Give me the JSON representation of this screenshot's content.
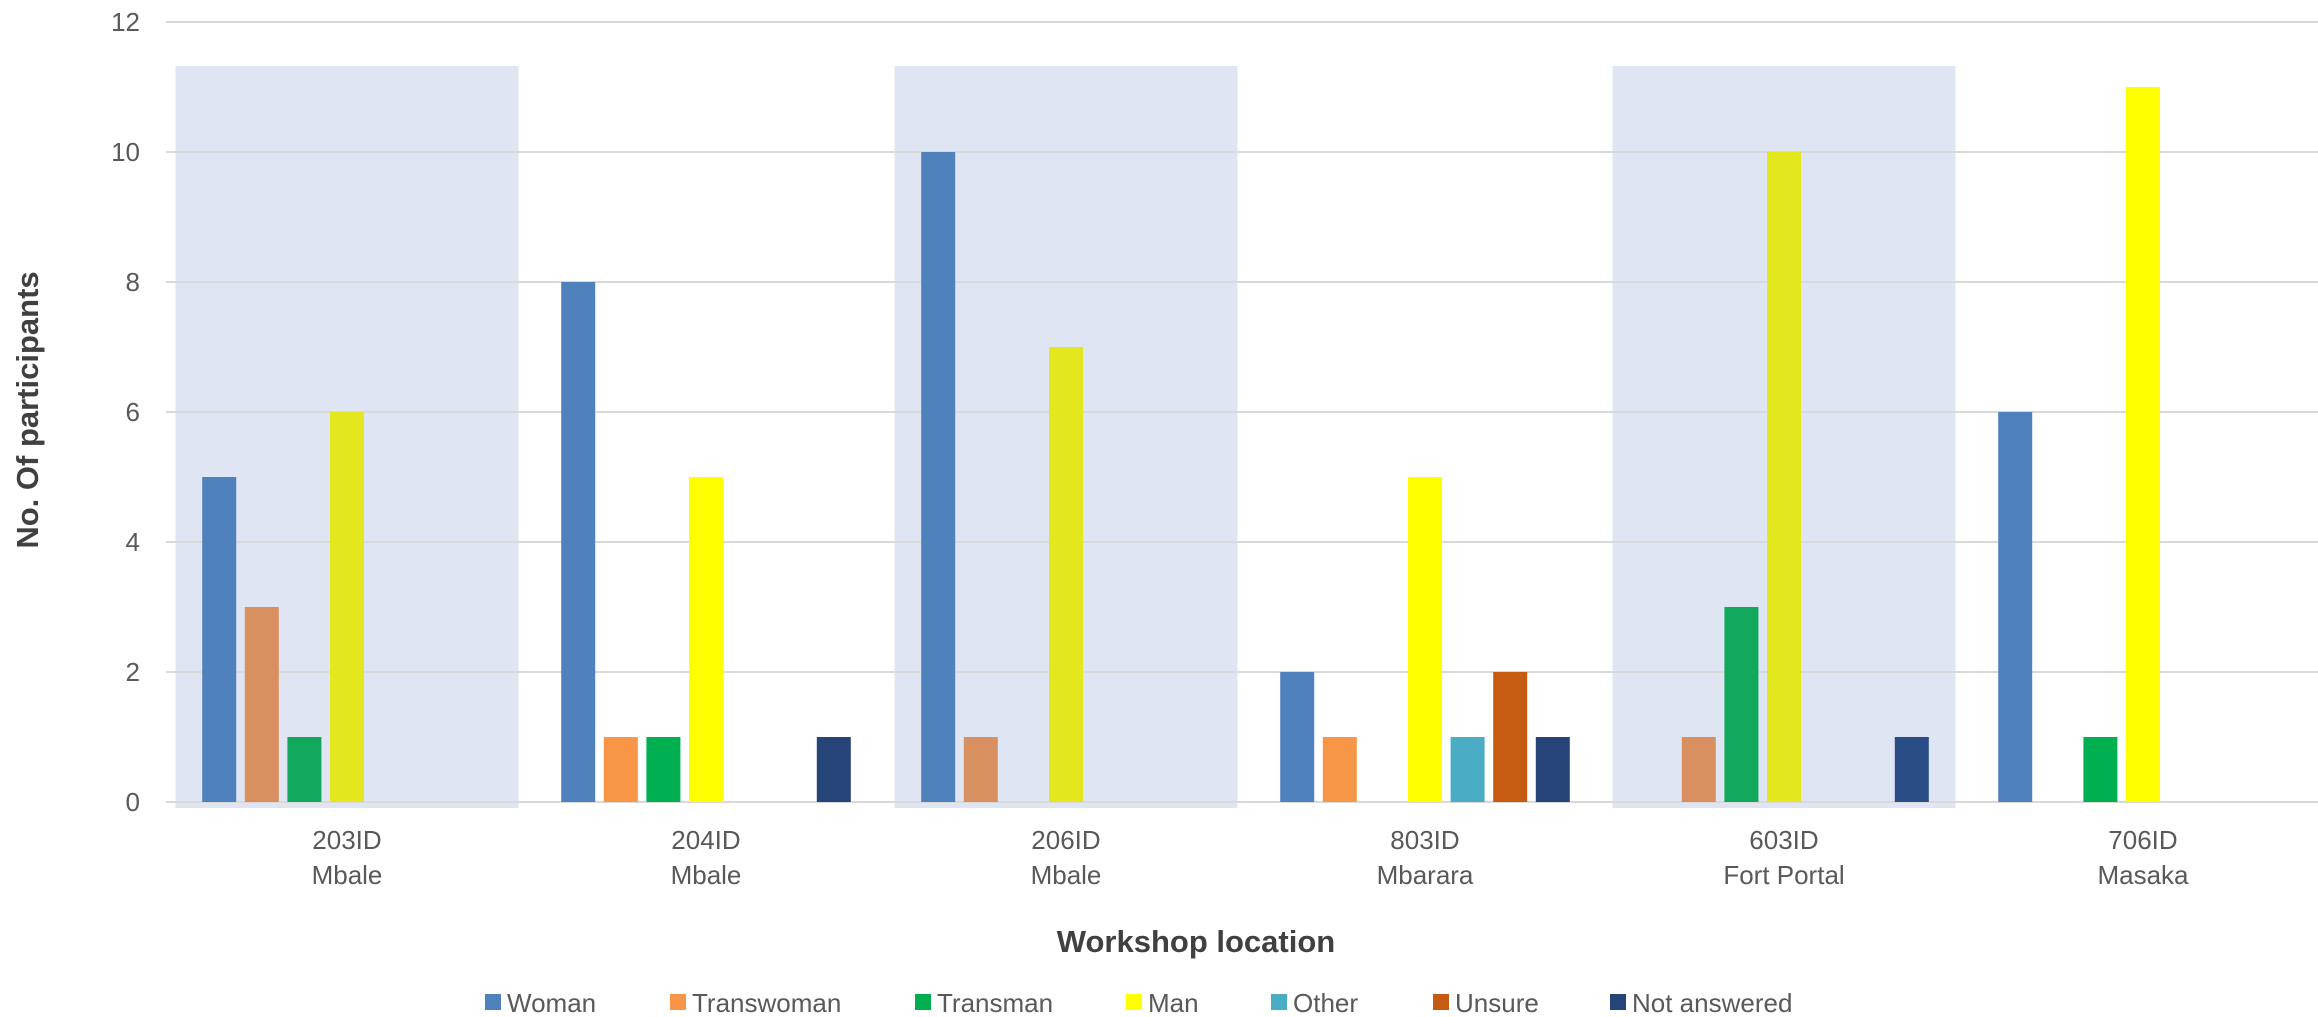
{
  "chart_data": {
    "type": "bar",
    "title": "",
    "xlabel": "Workshop location",
    "ylabel": "No. Of participants",
    "ylim": [
      0,
      12
    ],
    "yticks": [
      0,
      2,
      4,
      6,
      8,
      10,
      12
    ],
    "grid": true,
    "legend_position": "bottom",
    "categories": [
      {
        "id": "203ID",
        "place": "Mbale",
        "shaded": true
      },
      {
        "id": "204ID",
        "place": "Mbale",
        "shaded": false
      },
      {
        "id": "206ID",
        "place": "Mbale",
        "shaded": true
      },
      {
        "id": "803ID",
        "place": "Mbarara",
        "shaded": false
      },
      {
        "id": "603ID",
        "place": "Fort Portal",
        "shaded": true
      },
      {
        "id": "706ID",
        "place": "Masaka",
        "shaded": false
      }
    ],
    "series": [
      {
        "name": "Woman",
        "color": "#4F81BD",
        "values": [
          5,
          8,
          10,
          2,
          0,
          6
        ]
      },
      {
        "name": "Transwoman",
        "color": "#F79646",
        "values": [
          3,
          1,
          1,
          1,
          1,
          0
        ]
      },
      {
        "name": "Transman",
        "color": "#00B050",
        "values": [
          1,
          1,
          0,
          0,
          3,
          1
        ]
      },
      {
        "name": "Man",
        "color": "#FFFF00",
        "values": [
          6,
          5,
          7,
          5,
          10,
          11
        ]
      },
      {
        "name": "Other",
        "color": "#4BACC6",
        "values": [
          0,
          0,
          0,
          1,
          0,
          0
        ]
      },
      {
        "name": "Unsure",
        "color": "#C55A11",
        "values": [
          0,
          0,
          0,
          2,
          0,
          0
        ]
      },
      {
        "name": "Not answered",
        "color": "#264478",
        "values": [
          0,
          1,
          0,
          1,
          1,
          0
        ]
      }
    ],
    "shaded_colors": {
      "Woman": "#4F81BD",
      "Transwoman": "#D99060",
      "Transman": "#11A85C",
      "Man": "#E3E81E",
      "Not answered": "#2A4D88"
    },
    "shade_band_color": "#DFE5F2",
    "gridline_color": "#D9D9D9"
  }
}
